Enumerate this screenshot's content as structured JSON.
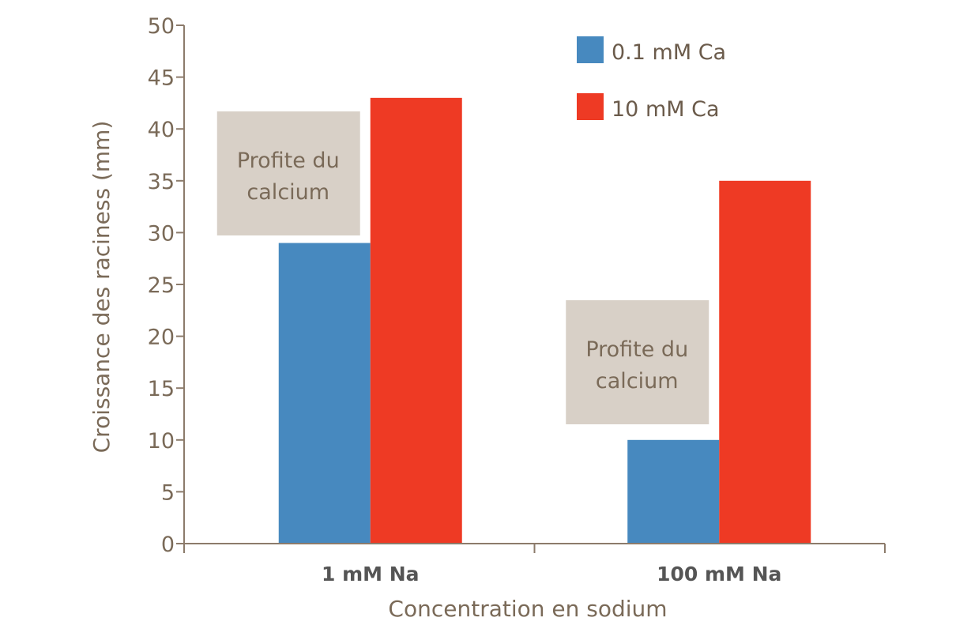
{
  "chart_data": {
    "type": "bar",
    "title": "",
    "xlabel": "Concentration en sodium",
    "ylabel": "Croissance des raciness (mm)",
    "categories": [
      "1 mM Na",
      "100 mM Na"
    ],
    "series": [
      {
        "name": "0.1 mM Ca",
        "values": [
          29,
          10
        ],
        "color": "#4789bf"
      },
      {
        "name": "10 mM Ca",
        "values": [
          43,
          35
        ],
        "color": "#ee3a24"
      }
    ],
    "ylim": [
      0,
      50
    ],
    "yticks": [
      "0",
      "5",
      "10",
      "15",
      "20",
      "25",
      "30",
      "35",
      "40",
      "45",
      "50"
    ],
    "grid": false,
    "legend": "top-right",
    "annotations": [
      {
        "category": "1 mM Na",
        "lines": [
          "Profite du",
          "calcium"
        ]
      },
      {
        "category": "100 mM Na",
        "lines": [
          "Profite du",
          "calcium"
        ]
      }
    ],
    "colors": {
      "axis": "#8c7b6b",
      "text": "#7a6a58",
      "annotation_bg": "#d8d0c7"
    }
  }
}
